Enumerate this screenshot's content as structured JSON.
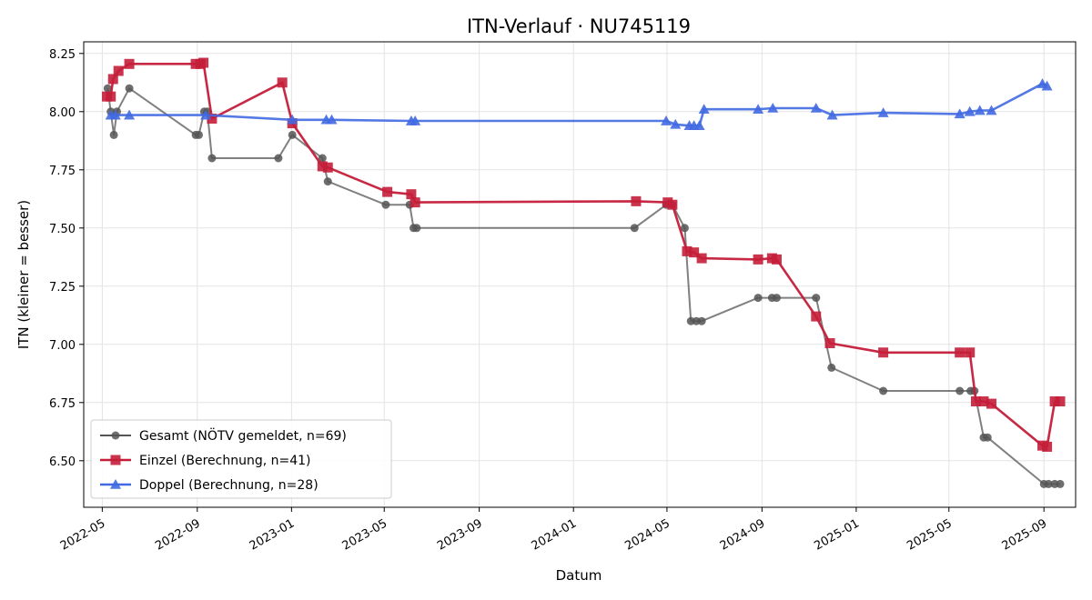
{
  "chart_data": {
    "type": "line",
    "title": "ITN-Verlauf · NU745119",
    "xlabel": "Datum",
    "ylabel": "ITN  (kleiner = besser)",
    "xlim": [
      "2022-04-07",
      "2025-10-12"
    ],
    "ylim": [
      6.3,
      8.3
    ],
    "x_ticks": [
      "2022-05-01",
      "2022-09-01",
      "2023-01-01",
      "2023-05-01",
      "2023-09-01",
      "2024-01-01",
      "2024-05-01",
      "2024-09-01",
      "2025-01-01",
      "2025-05-01",
      "2025-09-01"
    ],
    "x_tick_labels": [
      "2022-05",
      "2022-09",
      "2023-01",
      "2023-05",
      "2023-09",
      "2024-01",
      "2024-05",
      "2024-09",
      "2025-01",
      "2025-05",
      "2025-09"
    ],
    "y_ticks": [
      6.5,
      6.75,
      7.0,
      7.25,
      7.5,
      7.75,
      8.0,
      8.25
    ],
    "y_tick_labels": [
      "6.50",
      "6.75",
      "7.00",
      "7.25",
      "7.50",
      "7.75",
      "8.00",
      "8.25"
    ],
    "grid": true,
    "legend_position": "bottom-left",
    "series": [
      {
        "name": "Gesamt (NÖTV gemeldet, n=69)",
        "color": "#555555",
        "marker": "circle",
        "points": [
          [
            "2022-05-08",
            8.1
          ],
          [
            "2022-05-12",
            8.0
          ],
          [
            "2022-05-16",
            7.9
          ],
          [
            "2022-05-20",
            8.0
          ],
          [
            "2022-06-05",
            8.1
          ],
          [
            "2022-08-30",
            7.9
          ],
          [
            "2022-09-03",
            7.9
          ],
          [
            "2022-09-10",
            8.0
          ],
          [
            "2022-09-14",
            8.0
          ],
          [
            "2022-09-20",
            7.8
          ],
          [
            "2022-12-15",
            7.8
          ],
          [
            "2023-01-02",
            7.9
          ],
          [
            "2023-02-10",
            7.8
          ],
          [
            "2023-02-17",
            7.7
          ],
          [
            "2023-05-03",
            7.6
          ],
          [
            "2023-06-03",
            7.6
          ],
          [
            "2023-06-08",
            7.5
          ],
          [
            "2023-06-12",
            7.5
          ],
          [
            "2024-03-20",
            7.5
          ],
          [
            "2024-04-30",
            7.6
          ],
          [
            "2024-05-08",
            7.6
          ],
          [
            "2024-05-24",
            7.5
          ],
          [
            "2024-06-01",
            7.1
          ],
          [
            "2024-06-08",
            7.1
          ],
          [
            "2024-06-15",
            7.1
          ],
          [
            "2024-08-27",
            7.2
          ],
          [
            "2024-09-14",
            7.2
          ],
          [
            "2024-09-20",
            7.2
          ],
          [
            "2024-11-10",
            7.2
          ],
          [
            "2024-11-30",
            6.9
          ],
          [
            "2025-02-05",
            6.8
          ],
          [
            "2025-05-15",
            6.8
          ],
          [
            "2025-05-29",
            6.8
          ],
          [
            "2025-06-03",
            6.8
          ],
          [
            "2025-06-15",
            6.6
          ],
          [
            "2025-06-20",
            6.6
          ],
          [
            "2025-09-01",
            6.4
          ],
          [
            "2025-09-07",
            6.4
          ],
          [
            "2025-09-15",
            6.4
          ],
          [
            "2025-09-22",
            6.4
          ]
        ]
      },
      {
        "name": "Einzel (Berechnung, n=41)",
        "color": "#c41e3a",
        "marker": "square",
        "points": [
          [
            "2022-05-07",
            8.065
          ],
          [
            "2022-05-12",
            8.065
          ],
          [
            "2022-05-15",
            8.14
          ],
          [
            "2022-05-22",
            8.175
          ],
          [
            "2022-06-05",
            8.205
          ],
          [
            "2022-08-30",
            8.205
          ],
          [
            "2022-09-05",
            8.205
          ],
          [
            "2022-09-09",
            8.21
          ],
          [
            "2022-09-20",
            7.97
          ],
          [
            "2022-12-20",
            8.125
          ],
          [
            "2023-01-02",
            7.95
          ],
          [
            "2023-02-10",
            7.765
          ],
          [
            "2023-02-17",
            7.76
          ],
          [
            "2023-05-05",
            7.655
          ],
          [
            "2023-06-05",
            7.645
          ],
          [
            "2023-06-10",
            7.61
          ],
          [
            "2024-03-22",
            7.615
          ],
          [
            "2024-05-02",
            7.61
          ],
          [
            "2024-05-08",
            7.6
          ],
          [
            "2024-05-27",
            7.4
          ],
          [
            "2024-06-05",
            7.395
          ],
          [
            "2024-06-15",
            7.37
          ],
          [
            "2024-08-27",
            7.365
          ],
          [
            "2024-09-14",
            7.37
          ],
          [
            "2024-09-20",
            7.365
          ],
          [
            "2024-11-10",
            7.12
          ],
          [
            "2024-11-28",
            7.005
          ],
          [
            "2025-02-05",
            6.965
          ],
          [
            "2025-05-15",
            6.965
          ],
          [
            "2025-05-28",
            6.965
          ],
          [
            "2025-06-05",
            6.755
          ],
          [
            "2025-06-15",
            6.755
          ],
          [
            "2025-06-25",
            6.745
          ],
          [
            "2025-08-30",
            6.565
          ],
          [
            "2025-09-05",
            6.56
          ],
          [
            "2025-09-15",
            6.755
          ],
          [
            "2025-09-22",
            6.755
          ]
        ]
      },
      {
        "name": "Doppel (Berechnung, n=28)",
        "color": "#4169e1",
        "marker": "triangle",
        "points": [
          [
            "2022-05-12",
            7.985
          ],
          [
            "2022-05-18",
            7.985
          ],
          [
            "2022-06-05",
            7.985
          ],
          [
            "2022-09-12",
            7.985
          ],
          [
            "2023-01-02",
            7.965
          ],
          [
            "2023-02-15",
            7.965
          ],
          [
            "2023-02-22",
            7.965
          ],
          [
            "2023-06-05",
            7.96
          ],
          [
            "2023-06-10",
            7.96
          ],
          [
            "2024-04-30",
            7.96
          ],
          [
            "2024-05-12",
            7.945
          ],
          [
            "2024-05-30",
            7.94
          ],
          [
            "2024-06-05",
            7.94
          ],
          [
            "2024-06-12",
            7.94
          ],
          [
            "2024-06-18",
            8.01
          ],
          [
            "2024-08-27",
            8.01
          ],
          [
            "2024-09-15",
            8.015
          ],
          [
            "2024-11-10",
            8.015
          ],
          [
            "2024-12-01",
            7.985
          ],
          [
            "2025-02-05",
            7.995
          ],
          [
            "2025-05-15",
            7.99
          ],
          [
            "2025-05-28",
            8.0
          ],
          [
            "2025-06-10",
            8.005
          ],
          [
            "2025-06-25",
            8.005
          ],
          [
            "2025-08-30",
            8.12
          ],
          [
            "2025-09-05",
            8.11
          ]
        ]
      }
    ]
  }
}
